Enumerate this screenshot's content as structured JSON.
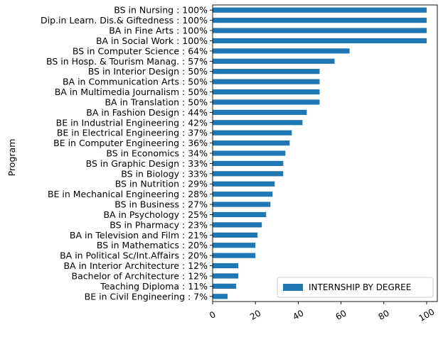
{
  "chart_data": {
    "type": "bar",
    "orientation": "horizontal",
    "categories": [
      "BS in Nursing : 100%",
      "Dip.in Learn. Dis.& Giftedness : 100%",
      "BA in Fine Arts : 100%",
      "BA in Social Work : 100%",
      "BS in Computer Science : 64%",
      "BS in Hosp. & Tourism Manag. : 57%",
      "BS in Interior Design : 50%",
      "BA in Communication Arts : 50%",
      "BA in Multimedia Journalism : 50%",
      "BA in Translation : 50%",
      "BA in Fashion Design : 44%",
      "BE in Industrial Engineering : 42%",
      "BE in Electrical Engineering : 37%",
      "BE in Computer Engineering : 36%",
      "BS in Economics : 34%",
      "BS in Graphic Design : 33%",
      "BS in Biology : 33%",
      "BS in Nutrition : 29%",
      "BE in Mechanical Engineering : 28%",
      "BS in Business : 27%",
      "BA in Psychology : 25%",
      "BS in Pharmacy : 23%",
      "BA in Television and Film : 21%",
      "BS in Mathematics : 20%",
      "BA in Political Sc/Int.Affairs : 20%",
      "BA in Interior Architecture : 12%",
      "Bachelor of Architecture : 12%",
      "Teaching Diploma : 11%",
      "BE in Civil Engineering : 7%"
    ],
    "series": [
      {
        "name": "INTERNSHIP BY DEGREE",
        "color": "#1f77b4",
        "values": [
          100,
          100,
          100,
          100,
          64,
          57,
          50,
          50,
          50,
          50,
          44,
          42,
          37,
          36,
          34,
          33,
          33,
          29,
          28,
          27,
          25,
          23,
          21,
          20,
          20,
          12,
          12,
          11,
          7
        ]
      }
    ],
    "title": "",
    "xlabel": "",
    "ylabel": "Program",
    "xlim": [
      0,
      105
    ],
    "xticks": [
      0,
      20,
      40,
      60,
      80,
      100
    ],
    "xtick_labels": [
      "0",
      "20",
      "40",
      "60",
      "80",
      "100"
    ],
    "xtick_rotation": 30,
    "grid": false,
    "legend": "lower-right"
  }
}
